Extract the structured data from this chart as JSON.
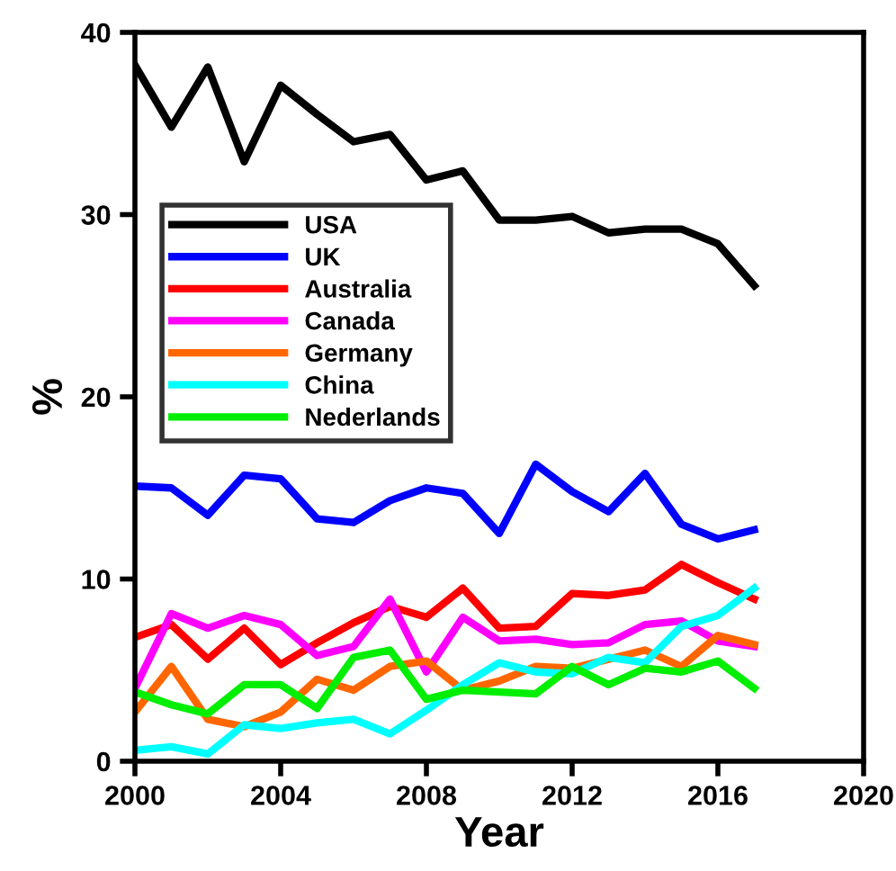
{
  "chart_data": {
    "type": "line",
    "xlabel": "Year",
    "ylabel": "%",
    "x": [
      2000,
      2001,
      2002,
      2003,
      2004,
      2005,
      2006,
      2007,
      2008,
      2009,
      2010,
      2011,
      2012,
      2013,
      2014,
      2015,
      2016,
      2017
    ],
    "series": [
      {
        "name": "USA",
        "color": "#000000",
        "values": [
          38.2,
          34.8,
          38.1,
          32.9,
          37.1,
          35.5,
          34.0,
          34.4,
          31.9,
          32.4,
          29.7,
          29.7,
          29.9,
          29.0,
          29.2,
          29.2,
          28.4,
          26.1
        ]
      },
      {
        "name": "UK",
        "color": "#0000ff",
        "values": [
          15.1,
          15.0,
          13.5,
          15.7,
          15.5,
          13.3,
          13.1,
          14.3,
          15.0,
          14.7,
          12.5,
          16.3,
          14.8,
          13.7,
          15.8,
          13.0,
          12.2,
          12.7
        ]
      },
      {
        "name": "Australia",
        "color": "#ff0000",
        "values": [
          6.8,
          7.5,
          5.6,
          7.3,
          5.3,
          6.5,
          7.6,
          8.5,
          7.9,
          9.5,
          7.3,
          7.4,
          9.2,
          9.1,
          9.4,
          10.8,
          9.8,
          8.9
        ]
      },
      {
        "name": "Canada",
        "color": "#ff00ff",
        "values": [
          4.0,
          8.1,
          7.3,
          8.0,
          7.5,
          5.8,
          6.3,
          8.9,
          4.9,
          7.9,
          6.6,
          6.7,
          6.4,
          6.5,
          7.5,
          7.7,
          6.6,
          6.3
        ]
      },
      {
        "name": "Germany",
        "color": "#ff6600",
        "values": [
          2.7,
          5.2,
          2.3,
          1.9,
          2.7,
          4.5,
          3.9,
          5.2,
          5.5,
          3.9,
          4.4,
          5.2,
          5.1,
          5.6,
          6.1,
          5.2,
          6.9,
          6.4
        ]
      },
      {
        "name": "China",
        "color": "#00ffff",
        "values": [
          0.6,
          0.8,
          0.4,
          2.0,
          1.8,
          2.1,
          2.3,
          1.5,
          2.8,
          4.2,
          5.4,
          4.9,
          4.8,
          5.7,
          5.4,
          7.4,
          8.0,
          9.5
        ]
      },
      {
        "name": "Nederlands",
        "color": "#00ee00",
        "values": [
          3.8,
          3.1,
          2.6,
          4.2,
          4.2,
          2.9,
          5.7,
          6.1,
          3.4,
          3.9,
          3.8,
          3.7,
          5.2,
          4.2,
          5.1,
          4.9,
          5.5,
          4.0
        ]
      }
    ],
    "xlim": [
      2000,
      2020
    ],
    "xticks": [
      2000,
      2004,
      2008,
      2012,
      2016,
      2020
    ],
    "ylim": [
      0,
      40
    ],
    "yticks": [
      0,
      10,
      20,
      30,
      40
    ],
    "grid": false,
    "legend": "top left",
    "marker": "none",
    "line_style": "solid"
  }
}
